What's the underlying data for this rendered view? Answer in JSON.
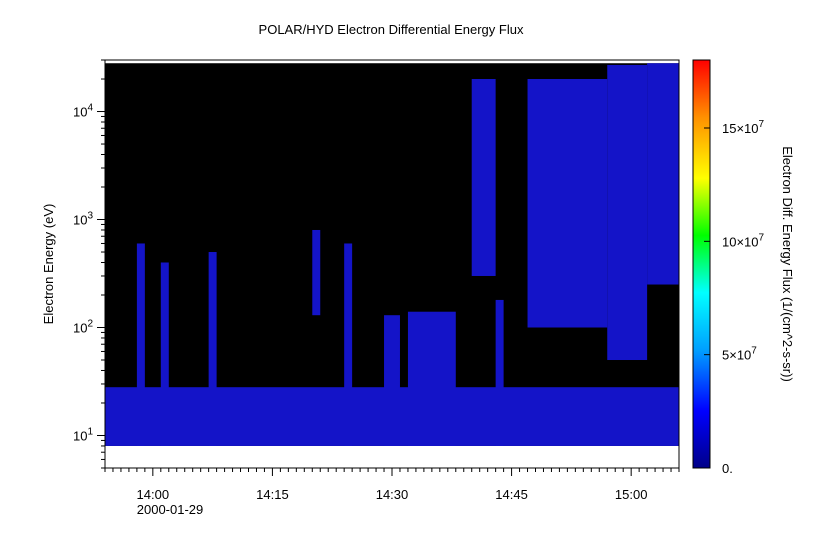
{
  "chart_data": {
    "type": "heatmap",
    "title": "POLAR/HYD  Electron Differential Energy Flux",
    "ylabel": "Electron Energy (eV)",
    "colorbar_label": "Electron Diff. Energy Flux (1/(cm^2-s-sr))",
    "y_scale": "log",
    "ylim": [
      5,
      30000
    ],
    "xlim": [
      "13:54",
      "15:06"
    ],
    "x_ticks": [
      {
        "t": "14:00",
        "label": "14:00"
      },
      {
        "t": "14:15",
        "label": "14:15"
      },
      {
        "t": "14:30",
        "label": "14:30"
      },
      {
        "t": "14:45",
        "label": "14:45"
      },
      {
        "t": "15:00",
        "label": "15:00"
      }
    ],
    "x_date_label": "2000-01-29",
    "y_ticks": [
      {
        "v": 10,
        "label": "10",
        "sup": "1"
      },
      {
        "v": 100,
        "label": "10",
        "sup": "2"
      },
      {
        "v": 1000,
        "label": "10",
        "sup": "3"
      },
      {
        "v": 10000,
        "label": "10",
        "sup": "4"
      }
    ],
    "colorbar": {
      "range": [
        0,
        180000000
      ],
      "ticks": [
        {
          "v": 0,
          "label": "0."
        },
        {
          "v": 50000000,
          "label": "5×10",
          "sup": "7"
        },
        {
          "v": 100000000,
          "label": "10×10",
          "sup": "7"
        },
        {
          "v": 150000000,
          "label": "15×10",
          "sup": "7"
        }
      ],
      "colors": [
        "#000088",
        "#0000ff",
        "#00a0ff",
        "#00ffff",
        "#00ff00",
        "#ffff00",
        "#ff9000",
        "#ff0000"
      ]
    },
    "background_color": "#000000",
    "flux_color": "#1414c8",
    "energy_range": [
      8,
      28000
    ],
    "flux_regions": [
      {
        "t0": "13:54",
        "t1": "15:06",
        "e0": 8,
        "e1": 28
      },
      {
        "t0": "13:58",
        "t1": "13:59",
        "e0": 8,
        "e1": 600
      },
      {
        "t0": "14:01",
        "t1": "14:02",
        "e0": 8,
        "e1": 400
      },
      {
        "t0": "14:07",
        "t1": "14:08",
        "e0": 8,
        "e1": 500
      },
      {
        "t0": "14:20",
        "t1": "14:21",
        "e0": 130,
        "e1": 800
      },
      {
        "t0": "14:24",
        "t1": "14:25",
        "e0": 8,
        "e1": 600
      },
      {
        "t0": "14:29",
        "t1": "14:31",
        "e0": 8,
        "e1": 130
      },
      {
        "t0": "14:32",
        "t1": "14:38",
        "e0": 8,
        "e1": 140
      },
      {
        "t0": "14:40",
        "t1": "14:43",
        "e0": 300,
        "e1": 20000
      },
      {
        "t0": "14:43",
        "t1": "14:44",
        "e0": 8,
        "e1": 180
      },
      {
        "t0": "14:47",
        "t1": "14:57",
        "e0": 100,
        "e1": 20000
      },
      {
        "t0": "14:57",
        "t1": "15:02",
        "e0": 50,
        "e1": 27000
      },
      {
        "t0": "15:02",
        "t1": "15:06",
        "e0": 250,
        "e1": 28000
      }
    ]
  }
}
